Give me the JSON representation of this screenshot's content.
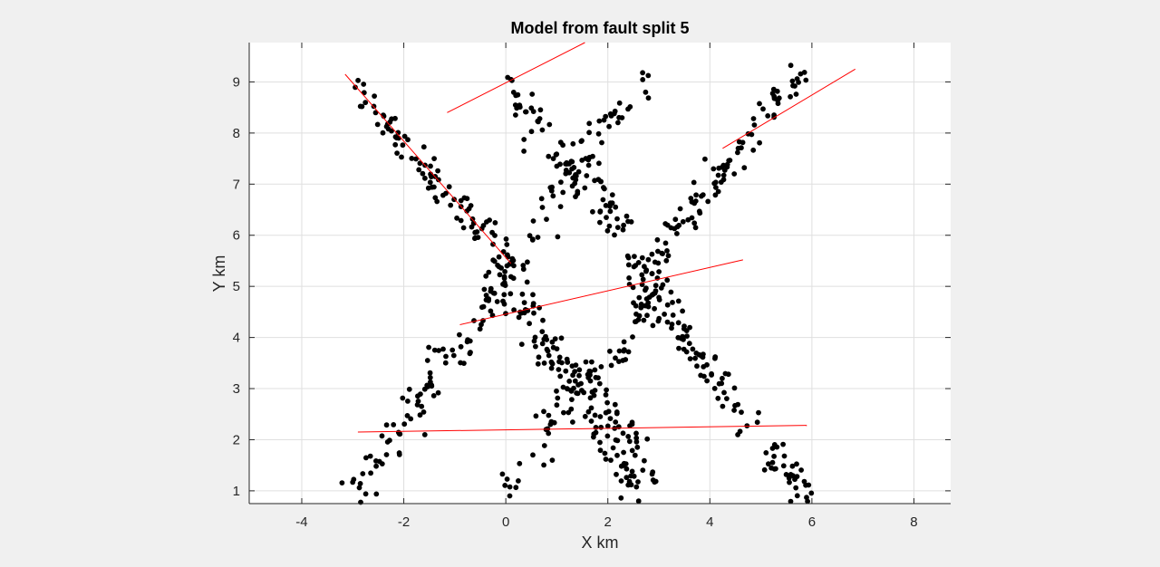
{
  "chart_data": {
    "type": "scatter",
    "title": "Model from fault split 5",
    "xlabel": "X km",
    "ylabel": "Y km",
    "xlim": [
      -5.03,
      8.72
    ],
    "ylim": [
      0.75,
      9.77
    ],
    "xticks": [
      -4,
      -2,
      0,
      2,
      4,
      6,
      8
    ],
    "yticks": [
      1,
      2,
      3,
      4,
      5,
      6,
      7,
      8,
      9
    ],
    "grid": true,
    "marker_color": "#000000",
    "line_color": "#ff0000",
    "fault_lines": [
      {
        "x": [
          -3.15,
          0.1
        ],
        "y": [
          9.15,
          5.45
        ]
      },
      {
        "x": [
          -1.15,
          1.55
        ],
        "y": [
          8.4,
          9.77
        ]
      },
      {
        "x": [
          4.25,
          6.85
        ],
        "y": [
          7.7,
          9.25
        ]
      },
      {
        "x": [
          -0.9,
          4.65
        ],
        "y": [
          4.25,
          5.52
        ]
      },
      {
        "x": [
          -2.9,
          5.9
        ],
        "y": [
          2.15,
          2.28
        ]
      }
    ],
    "clusters": [
      {
        "x0": -3.1,
        "y0": 9.05,
        "x1": 0.2,
        "y1": 5.3,
        "n": 95,
        "spread": 0.14
      },
      {
        "x0": -0.2,
        "y0": 5.6,
        "x1": 2.6,
        "y1": 0.9,
        "n": 85,
        "spread": 0.16
      },
      {
        "x0": -3.0,
        "y0": 0.95,
        "x1": 0.1,
        "y1": 5.2,
        "n": 95,
        "spread": 0.14
      },
      {
        "x0": 0.2,
        "y0": 4.6,
        "x1": 1.4,
        "y1": 3.2,
        "n": 28,
        "spread": 0.18
      },
      {
        "x0": 0.0,
        "y0": 9.05,
        "x1": 2.0,
        "y1": 6.1,
        "n": 55,
        "spread": 0.15
      },
      {
        "x0": 2.8,
        "y0": 9.15,
        "x1": 1.0,
        "y1": 6.9,
        "n": 45,
        "spread": 0.15
      },
      {
        "x0": 1.0,
        "y0": 6.9,
        "x1": 0.4,
        "y1": 5.4,
        "n": 18,
        "spread": 0.12
      },
      {
        "x0": 1.5,
        "y0": 7.3,
        "x1": 2.3,
        "y1": 6.1,
        "n": 20,
        "spread": 0.13
      },
      {
        "x0": 0.0,
        "y0": 0.9,
        "x1": 1.6,
        "y1": 3.5,
        "n": 45,
        "spread": 0.15
      },
      {
        "x0": 1.6,
        "y0": 3.5,
        "x1": 2.9,
        "y1": 1.1,
        "n": 45,
        "spread": 0.15
      },
      {
        "x0": 2.1,
        "y0": 3.5,
        "x1": 3.1,
        "y1": 5.1,
        "n": 30,
        "spread": 0.17
      },
      {
        "x0": 2.3,
        "y0": 5.5,
        "x1": 3.3,
        "y1": 4.4,
        "n": 30,
        "spread": 0.17
      },
      {
        "x0": 2.8,
        "y0": 4.9,
        "x1": 5.9,
        "y1": 0.8,
        "n": 95,
        "spread": 0.15
      },
      {
        "x0": 2.6,
        "y0": 5.2,
        "x1": 5.8,
        "y1": 9.2,
        "n": 100,
        "spread": 0.14
      }
    ]
  }
}
